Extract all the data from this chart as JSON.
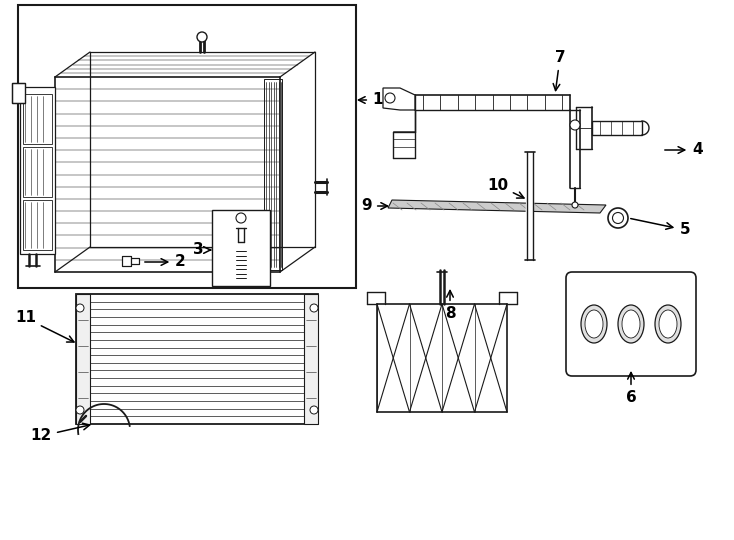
{
  "bg_color": "#ffffff",
  "line_color": "#1a1a1a",
  "fig_w": 7.34,
  "fig_h": 5.4,
  "dpi": 100
}
